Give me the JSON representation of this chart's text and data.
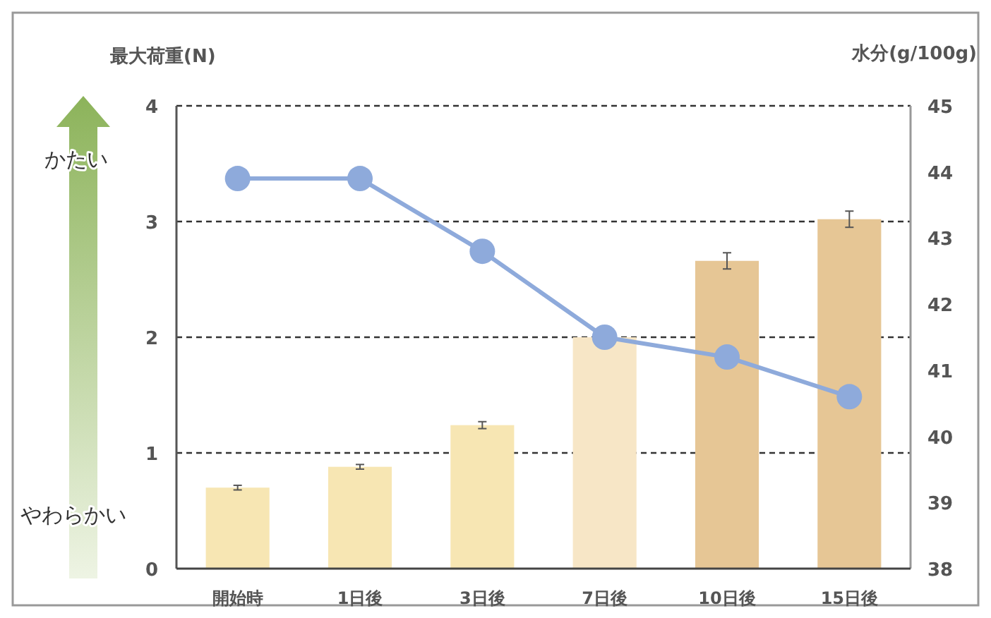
{
  "chart_data": {
    "type": "bar",
    "ylabel": "最大荷重(N)",
    "y2label": "水分(g/100g)",
    "categories": [
      "開始時",
      "1日後",
      "3日後",
      "7日後",
      "10日後",
      "15日後"
    ],
    "series": [
      {
        "colors": [
          "#f7e6b3",
          "#f7e6b3",
          "#f7e6b3",
          "#f7e6c6",
          "#e6c695",
          "#e6c695"
        ],
        "values": [
          0.7,
          0.88,
          1.24,
          2.0,
          2.66,
          3.02
        ],
        "errors": [
          0.02,
          0.02,
          0.03,
          null,
          0.07,
          0.07
        ]
      },
      {
        "type": "line",
        "axis": "y2",
        "color": "#8eaadb",
        "marker": "circle",
        "values": [
          43.9,
          43.9,
          42.8,
          41.5,
          41.2,
          40.6
        ]
      }
    ],
    "ylim": [
      0,
      4
    ],
    "yticks": [
      0,
      1,
      2,
      3,
      4
    ],
    "y2lim": [
      38,
      45
    ],
    "y2ticks": [
      38,
      39,
      40,
      41,
      42,
      43,
      44,
      45
    ],
    "grid": "y",
    "annotations": [
      "かたい",
      "やわらかい"
    ]
  }
}
